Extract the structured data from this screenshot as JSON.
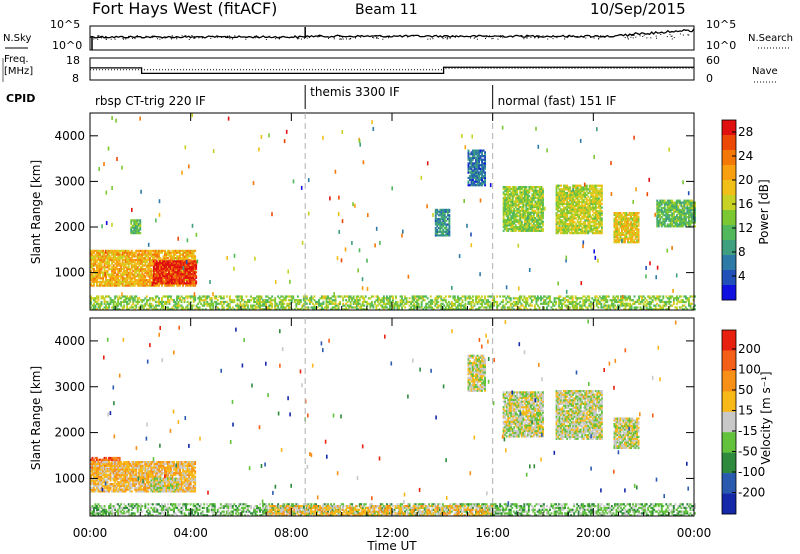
{
  "header": {
    "station": "Fort Hays West (fitACF)",
    "beam": "Beam 11",
    "date": "10/Sep/2015"
  },
  "noise_panel": {
    "left_label": "N.Sky",
    "right_label": "N.Search",
    "y_ticks_left": [
      "10^5",
      "10^0"
    ],
    "y_ticks_right": [
      "10^5",
      "10^0"
    ]
  },
  "freq_panel": {
    "left_label": "Freq.",
    "left_unit": "[MHz]",
    "right_label": "Nave",
    "y_ticks_left": [
      "18",
      "8"
    ],
    "y_ticks_right": [
      "60",
      "0"
    ],
    "freq_steps": [
      {
        "t0": 0.0,
        "t1": 2.05,
        "level": 13.5
      },
      {
        "t0": 2.05,
        "t1": 14.05,
        "level": 11.0
      },
      {
        "t0": 14.05,
        "t1": 24.0,
        "level": 13.8
      }
    ],
    "nave_steps": [
      {
        "t0": 0.0,
        "t1": 14.05,
        "level": 28
      },
      {
        "t0": 14.05,
        "t1": 24.0,
        "level": 32
      }
    ]
  },
  "cpid": {
    "label": "CPID",
    "segments": [
      {
        "t_start": 0.0,
        "text": "rbsp CT-trig 220 IF"
      },
      {
        "t_start": 8.55,
        "text": "themis 3300 IF"
      },
      {
        "t_start": 16.0,
        "text": "normal (fast) 151 IF"
      }
    ]
  },
  "chart_data": [
    {
      "type": "heatmap",
      "name": "power",
      "xlabel": "",
      "ylabel": "Slant Range [km]",
      "x_range_hours": [
        0,
        24
      ],
      "ylim": [
        180,
        4500
      ],
      "y_ticks": [
        "4000",
        "3000",
        "2000",
        "1000"
      ],
      "y_tick_values": [
        4000,
        3000,
        2000,
        1000
      ],
      "colorbar": {
        "label": "Power [dB]",
        "ticks": [
          "28",
          "24",
          "20",
          "16",
          "12",
          "8",
          "4"
        ],
        "tick_values": [
          28,
          24,
          20,
          16,
          12,
          8,
          4
        ],
        "range": [
          0,
          30
        ],
        "colors": [
          "#1010e0",
          "#2050b8",
          "#2e7aa6",
          "#3fa080",
          "#52b85c",
          "#7cc832",
          "#c8d224",
          "#f0c018",
          "#f8a010",
          "#f47808",
          "#ec4806",
          "#e01010"
        ]
      },
      "regions": [
        {
          "t0": 0.0,
          "t1": 4.2,
          "r0": 700,
          "r1": 1500,
          "value": 20
        },
        {
          "t0": 2.5,
          "t1": 4.2,
          "r0": 750,
          "r1": 1250,
          "value": 28
        },
        {
          "t0": 0.0,
          "t1": 24.0,
          "r0": 180,
          "r1": 500,
          "value": 14
        },
        {
          "t0": 1.6,
          "t1": 2.0,
          "r0": 1850,
          "r1": 2150,
          "value": 12
        },
        {
          "t0": 13.7,
          "t1": 14.3,
          "r0": 1800,
          "r1": 2400,
          "value": 8
        },
        {
          "t0": 15.0,
          "t1": 15.7,
          "r0": 2900,
          "r1": 3700,
          "value": 6
        },
        {
          "t0": 16.4,
          "t1": 18.0,
          "r0": 1900,
          "r1": 2900,
          "value": 14
        },
        {
          "t0": 18.5,
          "t1": 20.3,
          "r0": 1850,
          "r1": 2900,
          "value": 16
        },
        {
          "t0": 20.8,
          "t1": 21.8,
          "r0": 1650,
          "r1": 2300,
          "value": 18
        },
        {
          "t0": 22.5,
          "t1": 24.0,
          "r0": 2000,
          "r1": 2600,
          "value": 12
        }
      ]
    },
    {
      "type": "heatmap",
      "name": "velocity",
      "xlabel": "Time UT",
      "ylabel": "Slant Range [km]",
      "x_range_hours": [
        0,
        24
      ],
      "x_ticks": [
        "00:00",
        "04:00",
        "08:00",
        "12:00",
        "16:00",
        "20:00",
        "00:00"
      ],
      "ylim": [
        180,
        4500
      ],
      "y_ticks": [
        "4000",
        "3000",
        "2000",
        "1000"
      ],
      "y_tick_values": [
        4000,
        3000,
        2000,
        1000
      ],
      "colorbar": {
        "label": "Velocity [m s⁻¹]",
        "ticks": [
          "200",
          "100",
          "50",
          "15",
          "-15",
          "-50",
          "-100",
          "-200"
        ],
        "colors": [
          "#1428a8",
          "#2a5ab0",
          "#2e8a3c",
          "#62c23c",
          "#c8c8c8",
          "#f8b818",
          "#f89018",
          "#f46018",
          "#e82010"
        ]
      },
      "regions": [
        {
          "t0": 0.0,
          "t1": 1.2,
          "r0": 1150,
          "r1": 1450,
          "band": 7
        },
        {
          "t0": 0.0,
          "t1": 4.2,
          "r0": 700,
          "r1": 1350,
          "band": 5
        },
        {
          "t0": 2.4,
          "t1": 3.6,
          "r0": 700,
          "r1": 1000,
          "band": 4
        },
        {
          "t0": 0.0,
          "t1": 24.0,
          "r0": 180,
          "r1": 450,
          "band": 3
        },
        {
          "t0": 7.0,
          "t1": 16.0,
          "r0": 180,
          "r1": 420,
          "band": 5
        },
        {
          "t0": 15.0,
          "t1": 15.7,
          "r0": 2900,
          "r1": 3700,
          "band": 4
        },
        {
          "t0": 16.4,
          "t1": 18.0,
          "r0": 1900,
          "r1": 2900,
          "band": 4
        },
        {
          "t0": 18.5,
          "t1": 20.3,
          "r0": 1850,
          "r1": 2900,
          "band": 4
        },
        {
          "t0": 20.8,
          "t1": 21.8,
          "r0": 1650,
          "r1": 2300,
          "band": 4
        }
      ]
    }
  ]
}
